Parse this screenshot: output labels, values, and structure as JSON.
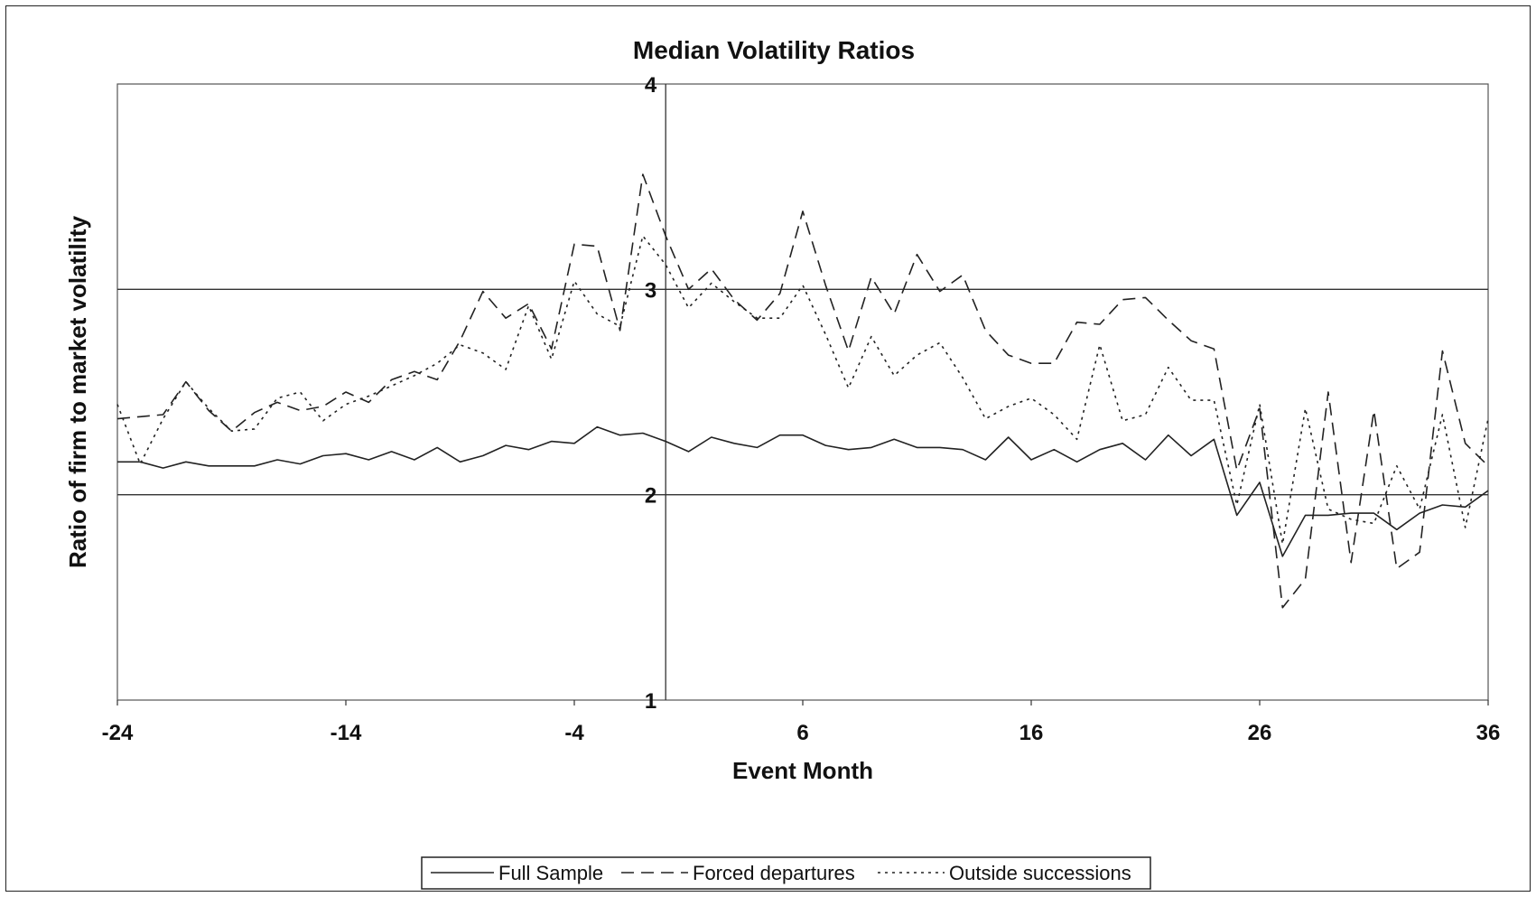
{
  "chart_data": {
    "type": "line",
    "title": "Median Volatility Ratios",
    "xlabel": "Event Month",
    "ylabel": "Ratio of firm to market volatility",
    "xlim": [
      -24,
      36
    ],
    "ylim": [
      1,
      4
    ],
    "x_ticks": [
      -24,
      -14,
      -4,
      6,
      16,
      26,
      36
    ],
    "y_ticks": [
      1,
      2,
      3,
      4
    ],
    "y_gridlines": [
      2,
      3
    ],
    "vertical_axis_at_x": 0,
    "grid": true,
    "legend": "bottom",
    "x": [
      -24,
      -23,
      -22,
      -21,
      -20,
      -19,
      -18,
      -17,
      -16,
      -15,
      -14,
      -13,
      -12,
      -11,
      -10,
      -9,
      -8,
      -7,
      -6,
      -5,
      -4,
      -3,
      -2,
      -1,
      0,
      1,
      2,
      3,
      4,
      5,
      6,
      7,
      8,
      9,
      10,
      11,
      12,
      13,
      14,
      15,
      16,
      17,
      18,
      19,
      20,
      21,
      22,
      23,
      24,
      25,
      26,
      27,
      28,
      29,
      30,
      31,
      32,
      33,
      34,
      35,
      36
    ],
    "series": [
      {
        "name": "Full Sample",
        "style": "solid",
        "values": [
          2.16,
          2.16,
          2.13,
          2.16,
          2.14,
          2.14,
          2.14,
          2.17,
          2.15,
          2.19,
          2.2,
          2.17,
          2.21,
          2.17,
          2.23,
          2.16,
          2.19,
          2.24,
          2.22,
          2.26,
          2.25,
          2.33,
          2.29,
          2.3,
          2.26,
          2.21,
          2.28,
          2.25,
          2.23,
          2.29,
          2.29,
          2.24,
          2.22,
          2.23,
          2.27,
          2.23,
          2.23,
          2.22,
          2.17,
          2.28,
          2.17,
          2.22,
          2.16,
          2.22,
          2.25,
          2.17,
          2.29,
          2.19,
          2.27,
          1.9,
          2.06,
          1.7,
          1.9,
          1.9,
          1.91,
          1.91,
          1.83,
          1.91,
          1.95,
          1.94,
          2.02
        ]
      },
      {
        "name": "Forced departures",
        "style": "dashed",
        "values": [
          2.37,
          2.38,
          2.39,
          2.55,
          2.41,
          2.31,
          2.4,
          2.45,
          2.41,
          2.43,
          2.5,
          2.45,
          2.56,
          2.6,
          2.56,
          2.75,
          2.99,
          2.86,
          2.93,
          2.71,
          3.22,
          3.21,
          2.8,
          3.56,
          3.26,
          3.0,
          3.1,
          2.95,
          2.85,
          2.98,
          3.38,
          3.02,
          2.7,
          3.06,
          2.88,
          3.17,
          2.99,
          3.07,
          2.8,
          2.68,
          2.64,
          2.64,
          2.84,
          2.83,
          2.95,
          2.96,
          2.85,
          2.75,
          2.71,
          2.12,
          2.42,
          1.45,
          1.59,
          2.5,
          1.67,
          2.41,
          1.64,
          1.72,
          2.7,
          2.25,
          2.14
        ]
      },
      {
        "name": "Outside successions",
        "style": "dotted",
        "values": [
          2.44,
          2.15,
          2.37,
          2.55,
          2.42,
          2.31,
          2.32,
          2.47,
          2.5,
          2.36,
          2.44,
          2.48,
          2.53,
          2.58,
          2.64,
          2.73,
          2.69,
          2.61,
          2.92,
          2.66,
          3.04,
          2.88,
          2.82,
          3.26,
          3.12,
          2.91,
          3.03,
          2.94,
          2.86,
          2.86,
          3.02,
          2.78,
          2.52,
          2.77,
          2.58,
          2.68,
          2.74,
          2.57,
          2.37,
          2.43,
          2.47,
          2.39,
          2.27,
          2.73,
          2.36,
          2.39,
          2.62,
          2.46,
          2.46,
          1.95,
          2.44,
          1.76,
          2.42,
          1.93,
          1.88,
          1.86,
          2.14,
          1.93,
          2.39,
          1.84,
          2.37
        ]
      }
    ]
  }
}
